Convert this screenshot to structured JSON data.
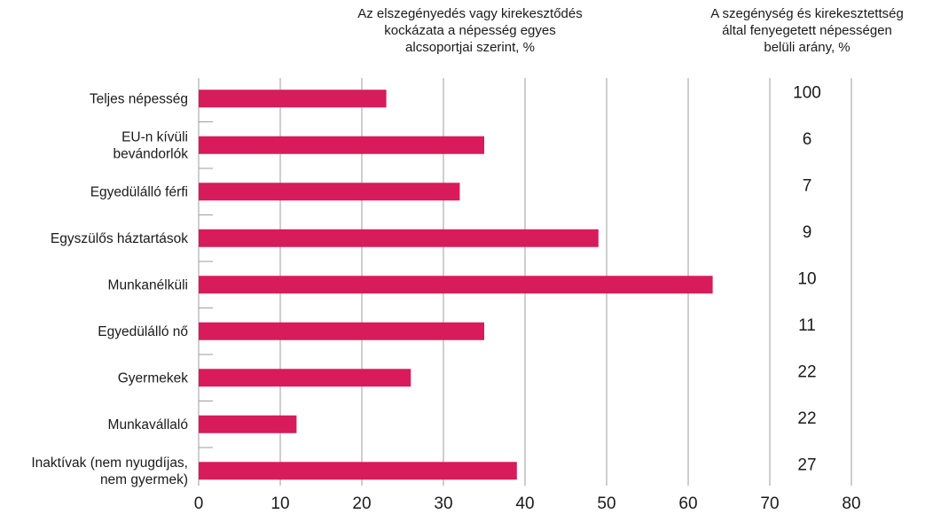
{
  "header": {
    "left_title_lines": [
      "Az elszegényedés vagy kirekesztődés",
      "kockázata a népesség egyes",
      "alcsoportjai szerint, %"
    ],
    "right_title_lines": [
      "A szegénység és kirekesztettség",
      "által fenyegetett népességen",
      "belüli arány, %"
    ]
  },
  "colors": {
    "bar": "#d81b5a",
    "grid": "#9e9e9e",
    "text": "#1a1a1a"
  },
  "chart_data": {
    "type": "bar",
    "orientation": "horizontal",
    "categories": [
      [
        "Teljes népesség"
      ],
      [
        "EU-n kívüli",
        "bevándorlók"
      ],
      [
        "Egyedülálló férfi"
      ],
      [
        "Egyszülős háztartások"
      ],
      [
        "Munkanélküli"
      ],
      [
        "Egyedülálló nő"
      ],
      [
        "Gyermekek"
      ],
      [
        "Munkavállaló"
      ],
      [
        "Inaktívak (nem nyugdíjas,",
        "nem gyermek)"
      ]
    ],
    "values": [
      23,
      35,
      32,
      49,
      63,
      35,
      26,
      12,
      39
    ],
    "share_values": [
      "100",
      "6",
      "7",
      "9",
      "10",
      "11",
      "22",
      "22",
      "27"
    ],
    "xlim": [
      0,
      80
    ],
    "xticks": [
      "0",
      "10",
      "20",
      "30",
      "40",
      "50",
      "60",
      "70",
      "80"
    ],
    "grid": true
  }
}
